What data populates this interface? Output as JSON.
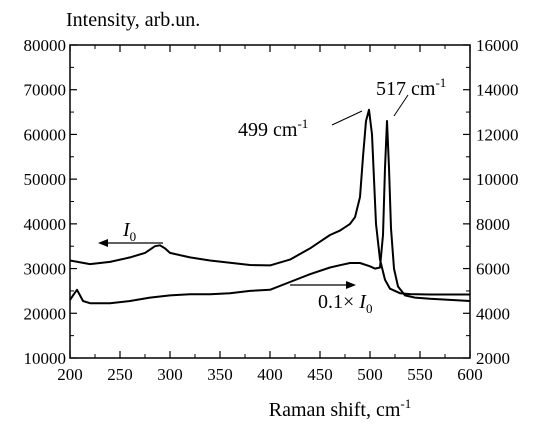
{
  "chart_data": {
    "type": "line",
    "title": "",
    "xlabel": "Raman shift, cm",
    "xlabel_sup": "-1",
    "ylabel": "Intensity, arb.un.",
    "xlim": [
      200,
      600
    ],
    "ylim_left": [
      10000,
      80000
    ],
    "ylim_right": [
      2000,
      16000
    ],
    "x_ticks": [
      200,
      250,
      300,
      350,
      400,
      450,
      500,
      550,
      600
    ],
    "y_ticks_left": [
      10000,
      20000,
      30000,
      40000,
      50000,
      60000,
      70000,
      80000
    ],
    "y_ticks_right": [
      2000,
      4000,
      6000,
      8000,
      10000,
      12000,
      14000,
      16000
    ],
    "grid": false,
    "legend": "none",
    "annotations": {
      "peak_499": "499 cm",
      "peak_499_sup": "-1",
      "peak_517": "517 cm",
      "peak_517_sup": "-1",
      "i0_label": "I",
      "i0_sub": "0",
      "scaled_label_prefix": "0.1× ",
      "scaled_label_I": "I",
      "scaled_label_sub": "0"
    },
    "series": [
      {
        "axis": "left",
        "x": [
          200,
          220,
          240,
          260,
          275,
          285,
          290,
          295,
          300,
          320,
          340,
          360,
          380,
          400,
          420,
          440,
          450,
          460,
          470,
          480,
          485,
          490,
          493,
          496,
          499,
          502,
          506,
          510,
          515,
          520,
          530,
          540,
          560,
          580,
          600
        ],
        "y": [
          31800,
          31000,
          31500,
          32500,
          33500,
          35000,
          35200,
          34500,
          33500,
          32500,
          31800,
          31300,
          30800,
          30700,
          32000,
          34500,
          36000,
          37500,
          38500,
          40000,
          41500,
          46000,
          55000,
          63000,
          65500,
          60000,
          40000,
          32000,
          27500,
          25500,
          24500,
          24300,
          24200,
          24200,
          24200
        ]
      },
      {
        "axis": "right",
        "x": [
          200,
          203,
          207,
          210,
          213,
          220,
          240,
          260,
          280,
          300,
          320,
          340,
          360,
          380,
          400,
          420,
          440,
          460,
          470,
          480,
          490,
          500,
          505,
          510,
          513,
          515,
          517,
          519,
          521,
          524,
          528,
          535,
          545,
          560,
          580,
          600
        ],
        "y": [
          4600,
          4800,
          5050,
          4800,
          4550,
          4450,
          4450,
          4550,
          4700,
          4800,
          4850,
          4850,
          4900,
          5000,
          5050,
          5400,
          5750,
          6050,
          6150,
          6250,
          6250,
          6100,
          6000,
          6050,
          7500,
          10500,
          12600,
          10500,
          7800,
          6000,
          5200,
          4800,
          4700,
          4650,
          4600,
          4550
        ]
      }
    ]
  }
}
